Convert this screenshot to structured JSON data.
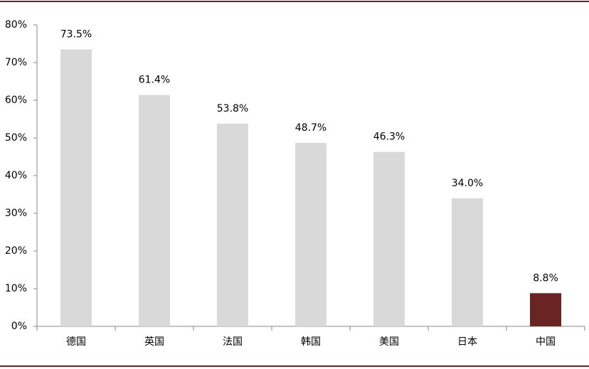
{
  "chart_data": {
    "type": "bar",
    "categories": [
      "德国",
      "英国",
      "法国",
      "韩国",
      "美国",
      "日本",
      "中国"
    ],
    "values": [
      73.5,
      61.4,
      53.8,
      48.7,
      46.3,
      34.0,
      8.8
    ],
    "value_labels": [
      "73.5%",
      "61.4%",
      "53.8%",
      "48.7%",
      "46.3%",
      "34.0%",
      "8.8%"
    ],
    "colors": [
      "#d9d9d9",
      "#d9d9d9",
      "#d9d9d9",
      "#d9d9d9",
      "#d9d9d9",
      "#d9d9d9",
      "#6b2424"
    ],
    "ylim": [
      0,
      80
    ],
    "yticks": [
      {
        "value": 0,
        "label": "0%"
      },
      {
        "value": 10,
        "label": "10%"
      },
      {
        "value": 20,
        "label": "20%"
      },
      {
        "value": 30,
        "label": "30%"
      },
      {
        "value": 40,
        "label": "40%"
      },
      {
        "value": 50,
        "label": "50%"
      },
      {
        "value": 60,
        "label": "60%"
      },
      {
        "value": 70,
        "label": "70%"
      },
      {
        "value": 80,
        "label": "80%"
      }
    ],
    "grid": false
  }
}
